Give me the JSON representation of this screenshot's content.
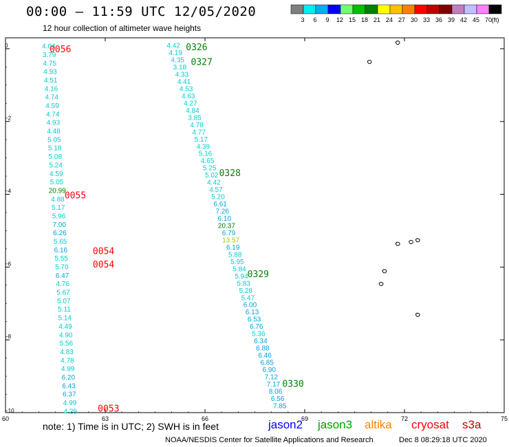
{
  "header": {
    "title": "00:00 — 11:59 UTC 12/05/2020",
    "subtitle": "12 hour collection of altimeter wave heights"
  },
  "colorbar": {
    "labels": [
      "3",
      "6",
      "9",
      "12",
      "15",
      "18",
      "21",
      "24",
      "27",
      "30",
      "33",
      "36",
      "39",
      "42",
      "45",
      "70",
      "(ft)"
    ],
    "colors": [
      "#7f7f7f",
      "#00eeee",
      "#00b0f0",
      "#0000ff",
      "#70ff70",
      "#00c000",
      "#008000",
      "#ffff00",
      "#ffc000",
      "#ff8000",
      "#ff0000",
      "#c00000",
      "#800000",
      "#c080c0",
      "#c0c0ff",
      "#ff80ff",
      "#000000"
    ]
  },
  "axes": {
    "x_ticks": [
      "60",
      "63",
      "66",
      "69",
      "72",
      "75"
    ],
    "y_ticks": [
      "0",
      "−2",
      "−4",
      "−6",
      "−8",
      "−10"
    ],
    "lon_range": [
      60,
      75
    ],
    "lat_range": [
      -10,
      0.3
    ]
  },
  "tracks": [
    {
      "name": "track-west",
      "color": "#00cccc",
      "lon_start": 61.3,
      "lon_end": 61.95,
      "lat_start": 0.08,
      "lat_end": -9.95,
      "values": [
        "4.04",
        "3.79",
        "4.75",
        "4.93",
        "4.51",
        "4.16",
        "4.74",
        "4.59",
        "4.74",
        "4.93",
        "4.48",
        "5.05",
        "5.18",
        "5.08",
        "5.24",
        "4.59",
        "5.05",
        "20.99",
        "4.88",
        "5.17",
        "5.96",
        "7.00",
        "6.26",
        "5.65",
        "6.16",
        "5.55",
        "5.70",
        "6.47",
        "4.76",
        "5.67",
        "5.07",
        "5.11",
        "5.14",
        "4.49",
        "4.90",
        "5.56",
        "4.83",
        "4.78",
        "4.99",
        "6.20",
        "6.43",
        "6.37",
        "4.99",
        "4.29"
      ]
    },
    {
      "name": "track-east",
      "color": "#00cccc",
      "lon_start": 65.05,
      "lon_end": 68.25,
      "lat_start": 0.1,
      "lat_end": -9.8,
      "values": [
        "4.42",
        "4.19",
        "4.35",
        "3.18",
        "4.33",
        "4.41",
        "4.53",
        "4.63",
        "4.27",
        "4.84",
        "3.85",
        "4.78",
        "4.77",
        "5.17",
        "4.39",
        "5.16",
        "4.65",
        "5.25",
        "5.02",
        "4.42",
        "4.57",
        "5.20",
        "6.61",
        "7.26",
        "6.10",
        "20.37",
        "6.79",
        "13.57",
        "6.19",
        "5.88",
        "5.95",
        "5.84",
        "5.94",
        "5.83",
        "5.28",
        "5.47",
        "6.00",
        "6.13",
        "6.53",
        "6.76",
        "5.36",
        "6.34",
        "6.88",
        "6.46",
        "6.85",
        "6.90",
        "7.12",
        "7.17",
        "8.06",
        "6.56",
        "7.85"
      ]
    }
  ],
  "value_colors": {
    "20.99": "#008000",
    "20.37": "#008000",
    "13.57": "#8fd400",
    "6.47": "#00a0dd",
    "6.20": "#00a0dd",
    "6.43": "#00a0dd",
    "6.37": "#00a0dd",
    "7.00": "#00a0dd",
    "6.26": "#00a0dd",
    "6.16": "#00a0dd",
    "6.61": "#00a0dd",
    "7.26": "#00a0dd",
    "6.10": "#00a0dd",
    "6.79": "#00a0dd",
    "6.19": "#00a0dd",
    "6.00": "#00a0dd",
    "6.13": "#00a0dd",
    "6.53": "#00a0dd",
    "6.76": "#00a0dd",
    "6.34": "#00a0dd",
    "6.88": "#00a0dd",
    "6.46": "#00a0dd",
    "6.85": "#00a0dd",
    "6.90": "#00a0dd",
    "7.12": "#00a0dd",
    "7.17": "#00a0dd",
    "8.06": "#00a0dd",
    "6.56": "#00a0dd",
    "7.85": "#00a0dd"
  },
  "time_labels": [
    {
      "text": "0056",
      "color": "#ff0000",
      "lon": 61.65,
      "lat": 0.0
    },
    {
      "text": "0055",
      "color": "#ff0000",
      "lon": 62.1,
      "lat": -4.02
    },
    {
      "text": "0054",
      "color": "#ff0000",
      "lon": 62.95,
      "lat": -5.55
    },
    {
      "text": "0054",
      "color": "#ff0000",
      "lon": 62.95,
      "lat": -5.92
    },
    {
      "text": "0053",
      "color": "#ff0000",
      "lon": 63.1,
      "lat": -9.88
    },
    {
      "text": "0326",
      "color": "#008000",
      "lon": 65.75,
      "lat": 0.05
    },
    {
      "text": "0327",
      "color": "#008000",
      "lon": 65.9,
      "lat": -0.35
    },
    {
      "text": "0328",
      "color": "#008000",
      "lon": 66.75,
      "lat": -3.4
    },
    {
      "text": "0329",
      "color": "#008000",
      "lon": 67.6,
      "lat": -6.18
    },
    {
      "text": "0330",
      "color": "#008000",
      "lon": 68.65,
      "lat": -9.2
    }
  ],
  "islands": [
    {
      "name": "island-a",
      "lon": 70.95,
      "lat": -0.35
    },
    {
      "name": "island-b",
      "lon": 71.8,
      "lat": 0.18
    },
    {
      "name": "island-c",
      "lon": 71.8,
      "lat": -5.35
    },
    {
      "name": "island-d",
      "lon": 72.2,
      "lat": -5.3
    },
    {
      "name": "island-e",
      "lon": 72.4,
      "lat": -5.25
    },
    {
      "name": "island-f",
      "lon": 71.4,
      "lat": -6.1
    },
    {
      "name": "island-g",
      "lon": 71.3,
      "lat": -6.45
    },
    {
      "name": "island-h",
      "lon": 72.4,
      "lat": -7.3
    }
  ],
  "footer": {
    "note": "note:  1) Time is in UTC;  2) SWH is in feet",
    "missions": [
      {
        "label": "jason2",
        "color": "#0000ff"
      },
      {
        "label": "jason3",
        "color": "#00a000"
      },
      {
        "label": "altika",
        "color": "#ff8000"
      },
      {
        "label": "cryosat",
        "color": "#ff0000"
      },
      {
        "label": "s3a",
        "color": "#c00000"
      }
    ],
    "credit": "NOAA/NESDIS Center for Satellite Applications and Research",
    "generated": "Dec  8 08:29:18 UTC 2020"
  }
}
